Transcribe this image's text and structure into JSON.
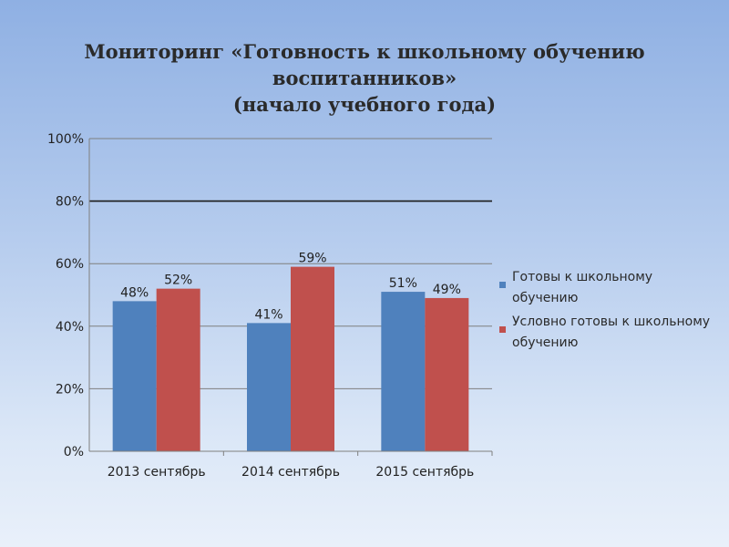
{
  "title": {
    "line1": "Мониторинг «Готовность к школьному обучению",
    "line2": "воспитанников»",
    "line3": "(начало учебного года)"
  },
  "legend": [
    {
      "label": "Готовы к школьному обучению",
      "color": "#4f81bd"
    },
    {
      "label": "Условно готовы к школьному обучению",
      "color": "#c0504d"
    }
  ],
  "chart_data": {
    "type": "bar",
    "categories": [
      "2013 сентябрь",
      "2014 сентябрь",
      "2015 сентябрь"
    ],
    "series": [
      {
        "name": "Готовы к школьному обучению",
        "values": [
          48,
          41,
          51
        ],
        "labels": [
          "48%",
          "41%",
          "51%"
        ],
        "color": "#4f81bd"
      },
      {
        "name": "Условно готовы к школьному обучению",
        "values": [
          52,
          59,
          49
        ],
        "labels": [
          "52%",
          "59%",
          "49%"
        ],
        "color": "#c0504d"
      }
    ],
    "y_ticks": [
      {
        "value": 0,
        "label": "0%"
      },
      {
        "value": 20,
        "label": "20%"
      },
      {
        "value": 40,
        "label": "40%"
      },
      {
        "value": 60,
        "label": "60%"
      },
      {
        "value": 80,
        "label": "80%"
      },
      {
        "value": 100,
        "label": "100%"
      }
    ],
    "ylim": [
      0,
      100
    ],
    "grid": true,
    "legend_position": "right"
  }
}
